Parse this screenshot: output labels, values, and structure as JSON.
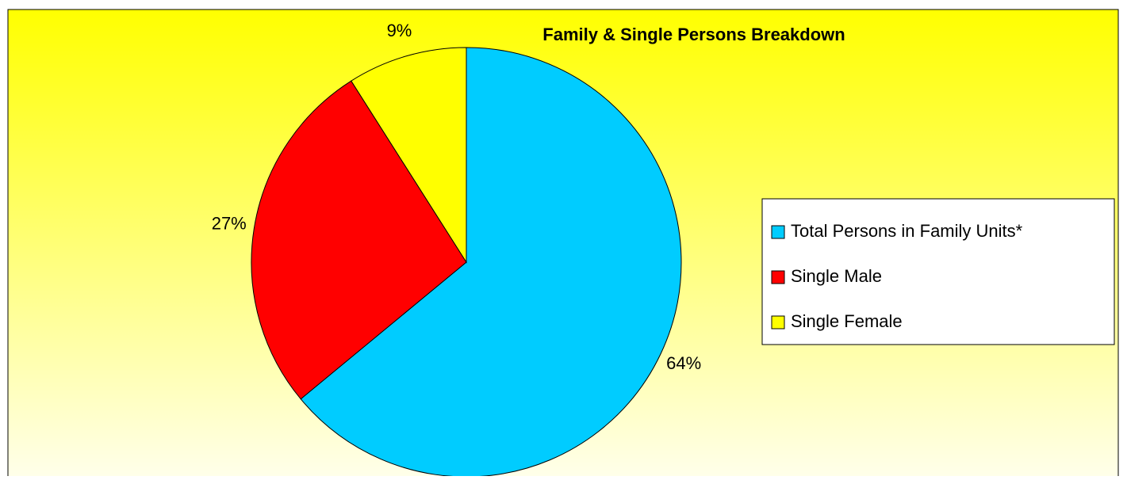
{
  "chart_data": {
    "type": "pie",
    "title": "Family & Single Persons Breakdown",
    "categories": [
      "Total Persons in Family Units*",
      "Single Male",
      "Single Female"
    ],
    "values": [
      64,
      27,
      9
    ],
    "value_labels": [
      "64%",
      "27%",
      "9%"
    ],
    "colors": [
      "#00ccff",
      "#ff0000",
      "#ffff00"
    ],
    "legend": "right"
  }
}
